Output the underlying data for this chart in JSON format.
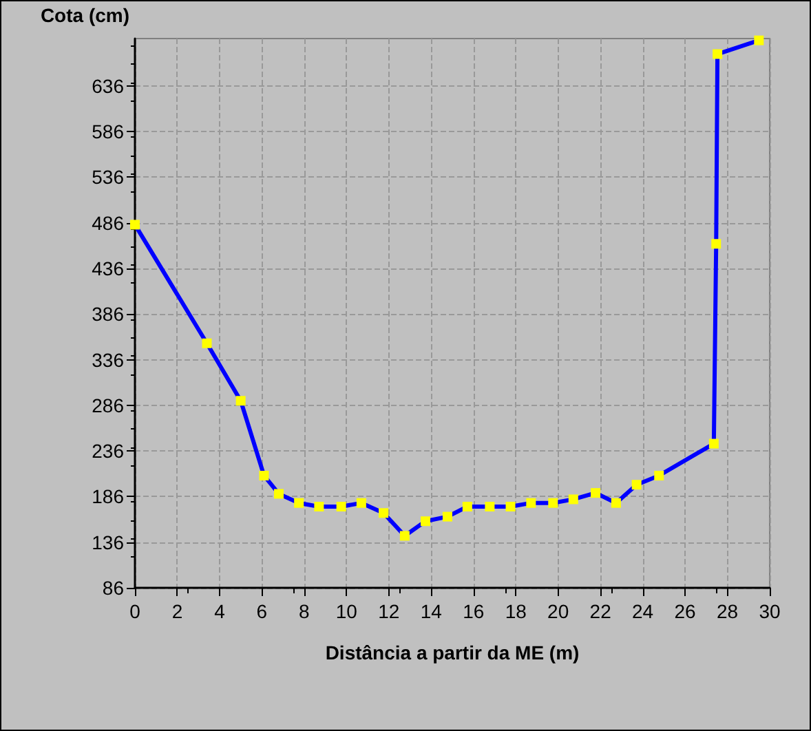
{
  "chart_data": {
    "type": "line",
    "xlabel": "Distância a partir da ME (m)",
    "ylabel": "Cota (cm)",
    "x": [
      0,
      3.4,
      5,
      6.1,
      6.8,
      7.75,
      8.7,
      9.75,
      10.7,
      11.75,
      12.75,
      13.73,
      14.77,
      15.71,
      16.77,
      17.75,
      18.72,
      19.76,
      20.72,
      21.77,
      22.74,
      23.71,
      24.77,
      27.36,
      27.47,
      27.53,
      29.49
    ],
    "series": [
      {
        "color": "#0000ff",
        "values": [
          484,
          354,
          291,
          209,
          189,
          179,
          175,
          175,
          179,
          168,
          143,
          159,
          164,
          175,
          175,
          175,
          179,
          179,
          183,
          190,
          179,
          199,
          209,
          244,
          463,
          671,
          686
        ]
      }
    ],
    "xlim": [
      0,
      30
    ],
    "xticks": [
      0,
      2,
      4,
      6,
      8,
      10,
      12,
      14,
      16,
      18,
      20,
      22,
      24,
      26,
      28,
      30
    ],
    "ylim": [
      86,
      688
    ],
    "yticks": [
      86,
      136,
      186,
      236,
      286,
      336,
      386,
      436,
      486,
      536,
      586,
      636
    ],
    "grid": true,
    "marker": "square",
    "line_style": "solid"
  }
}
